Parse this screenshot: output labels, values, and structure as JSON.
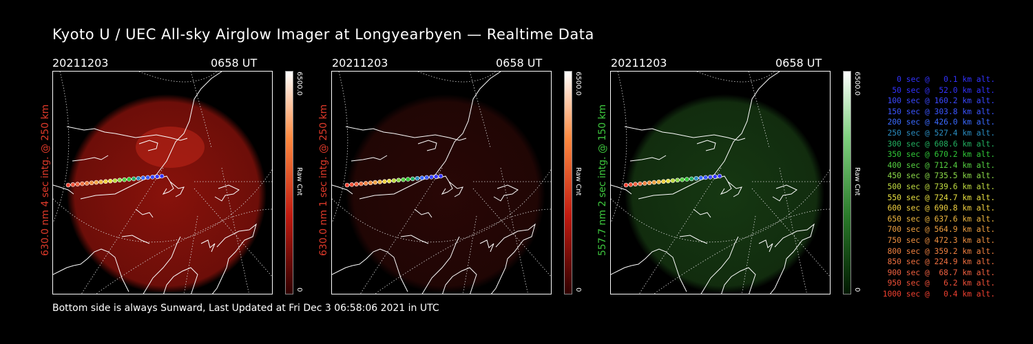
{
  "title": "Kyoto U / UEC All-sky Airglow Imager at Longyearbyen — Realtime Data",
  "footer": "Bottom side is always Sunward, Last Updated at Fri Dec  3 06:58:06 2021 in UTC",
  "panels": [
    {
      "date": "20211203",
      "time": "0658 UT",
      "ylabel": "630.0 nm 4 sec intg. @ 250 km",
      "label_color": "#e03a2a",
      "glow_color": "#a0150d",
      "glow_opacity": 0.85,
      "cbar_max": "6500.0",
      "cbar_min": "0",
      "cbar_unit": "Raw Cnt",
      "cbar_colors": [
        "#ffffff",
        "#ff8a40",
        "#c01a10",
        "#300000"
      ]
    },
    {
      "date": "20211203",
      "time": "0658 UT",
      "ylabel": "630.0 nm 1 sec intg. @ 250 km",
      "label_color": "#e03a2a",
      "glow_color": "#3a0a08",
      "glow_opacity": 0.7,
      "cbar_max": "6500.0",
      "cbar_min": "0",
      "cbar_unit": "Raw Cnt",
      "cbar_colors": [
        "#ffffff",
        "#ff8a40",
        "#c01a10",
        "#300000"
      ]
    },
    {
      "date": "20211203",
      "time": "0658 UT",
      "ylabel": "557.7 nm 2 sec intg. @ 150 km",
      "label_color": "#3ec83e",
      "glow_color": "#1d4a18",
      "glow_opacity": 0.75,
      "cbar_max": "6500.0",
      "cbar_min": "0",
      "cbar_unit": "Raw Cnt",
      "cbar_colors": [
        "#ffffff",
        "#7ed07e",
        "#2a7a2a",
        "#001800"
      ]
    }
  ],
  "legend": [
    {
      "text": "0 sec @   0.1 km alt.",
      "color": "#3232ff"
    },
    {
      "text": "50 sec @  52.0 km alt.",
      "color": "#3232ff"
    },
    {
      "text": "100 sec @ 160.2 km alt.",
      "color": "#3a48ff"
    },
    {
      "text": "150 sec @ 303.8 km alt.",
      "color": "#3a55ff"
    },
    {
      "text": "200 sec @ 426.0 km alt.",
      "color": "#3a6aff"
    },
    {
      "text": "250 sec @ 527.4 km alt.",
      "color": "#2a8cc0"
    },
    {
      "text": "300 sec @ 608.6 km alt.",
      "color": "#22b060"
    },
    {
      "text": "350 sec @ 670.2 km alt.",
      "color": "#30c838"
    },
    {
      "text": "400 sec @ 712.4 km alt.",
      "color": "#55d040"
    },
    {
      "text": "450 sec @ 735.5 km alt.",
      "color": "#8ad848"
    },
    {
      "text": "500 sec @ 739.6 km alt.",
      "color": "#c0dc40"
    },
    {
      "text": "550 sec @ 724.7 km alt.",
      "color": "#e8e040"
    },
    {
      "text": "600 sec @ 690.8 km alt.",
      "color": "#f0d040"
    },
    {
      "text": "650 sec @ 637.6 km alt.",
      "color": "#f0b840"
    },
    {
      "text": "700 sec @ 564.9 km alt.",
      "color": "#f0a040"
    },
    {
      "text": "750 sec @ 472.3 km alt.",
      "color": "#f09040"
    },
    {
      "text": "800 sec @ 359.2 km alt.",
      "color": "#f08040"
    },
    {
      "text": "850 sec @ 224.9 km alt.",
      "color": "#f07040"
    },
    {
      "text": "900 sec @  68.7 km alt.",
      "color": "#f06040"
    },
    {
      "text": "950 sec @   6.2 km alt.",
      "color": "#f05038"
    },
    {
      "text": "1000 sec @   0.4 km alt.",
      "color": "#f04030"
    }
  ]
}
